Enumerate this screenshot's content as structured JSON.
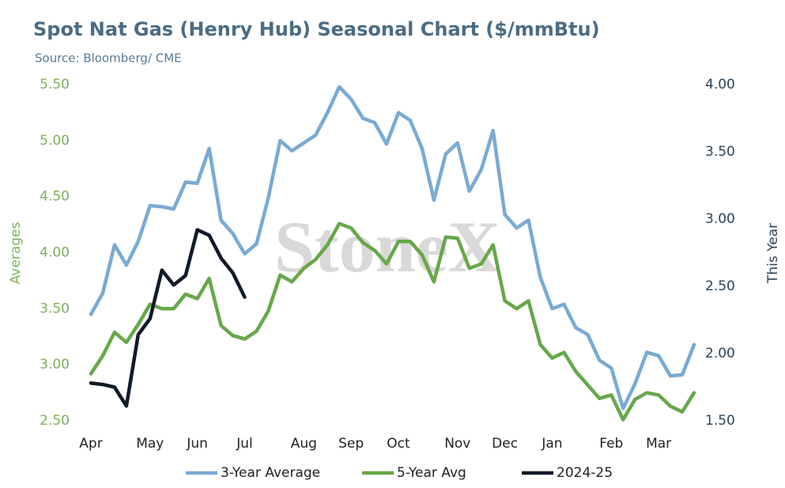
{
  "chart_data": {
    "type": "line",
    "title": "Spot Nat Gas (Henry Hub) Seasonal Chart ($/mmBtu)",
    "subtitle": "Source: Bloomberg/ CME",
    "watermark": "StoneX",
    "ylabel": "Averages",
    "y2label": "This Year",
    "categories": [
      "Apr",
      null,
      null,
      null,
      null,
      "May",
      null,
      null,
      null,
      "Jun",
      null,
      null,
      null,
      "Jul",
      null,
      null,
      null,
      null,
      "Aug",
      null,
      null,
      null,
      "Sep",
      null,
      null,
      null,
      "Oct",
      null,
      null,
      null,
      null,
      "Nov",
      null,
      null,
      null,
      "Dec",
      null,
      null,
      null,
      "Jan",
      null,
      null,
      null,
      null,
      "Feb",
      null,
      null,
      null,
      "Mar",
      null,
      null,
      null
    ],
    "ylim": [
      2.5,
      5.5
    ],
    "yticks": [
      {
        "value": 2.5,
        "label": "2.50"
      },
      {
        "value": 3,
        "label": "3.00"
      },
      {
        "value": 3.5,
        "label": "3.50"
      },
      {
        "value": 4,
        "label": "4.00"
      },
      {
        "value": 4.5,
        "label": "4.50"
      },
      {
        "value": 5,
        "label": "5.00"
      },
      {
        "value": 5.5,
        "label": "5.50"
      }
    ],
    "y2lim": [
      1.5,
      4
    ],
    "y2ticks": [
      {
        "value": 1.5,
        "label": "1.50"
      },
      {
        "value": 2,
        "label": "2.00"
      },
      {
        "value": 2.5,
        "label": "2.50"
      },
      {
        "value": 3,
        "label": "3.00"
      },
      {
        "value": 3.5,
        "label": "3.50"
      },
      {
        "value": 4,
        "label": "4.00"
      }
    ],
    "legend": "bottom",
    "series": [
      {
        "name": "3-Year Average",
        "color": "#7aaad3",
        "values": [
          3.45,
          3.64,
          4.07,
          3.89,
          4.1,
          4.42,
          4.41,
          4.39,
          4.63,
          4.62,
          4.93,
          4.29,
          4.17,
          3.99,
          4.08,
          4.49,
          5.0,
          4.91,
          4.98,
          5.05,
          5.25,
          5.48,
          5.37,
          5.2,
          5.16,
          4.97,
          5.25,
          5.18,
          4.93,
          4.47,
          4.88,
          4.98,
          4.55,
          4.74,
          5.09,
          4.34,
          4.22,
          4.29,
          3.78,
          3.5,
          3.54,
          3.33,
          3.27,
          3.04,
          2.97,
          2.61,
          2.83,
          3.11,
          3.08,
          2.9,
          2.91,
          3.18
        ]
      },
      {
        "name": "5-Year Avg",
        "color": "#67a84a",
        "values": [
          2.92,
          3.08,
          3.29,
          3.2,
          3.36,
          3.54,
          3.5,
          3.5,
          3.63,
          3.59,
          3.77,
          3.35,
          3.26,
          3.23,
          3.3,
          3.48,
          3.8,
          3.74,
          3.86,
          3.94,
          4.07,
          4.26,
          4.22,
          4.09,
          4.02,
          3.9,
          4.1,
          4.1,
          3.98,
          3.74,
          4.14,
          4.13,
          3.86,
          3.9,
          4.07,
          3.57,
          3.5,
          3.57,
          3.18,
          3.06,
          3.11,
          2.94,
          2.82,
          2.7,
          2.73,
          2.51,
          2.69,
          2.75,
          2.73,
          2.63,
          2.58,
          2.75
        ]
      },
      {
        "name": "2024-25",
        "color": "#111a29",
        "axis": "y2",
        "values": [
          1.78,
          1.77,
          1.75,
          1.61,
          2.14,
          2.26,
          2.62,
          2.51,
          2.58,
          2.92,
          2.88,
          2.71,
          2.6,
          2.42,
          null,
          null,
          null,
          null,
          null,
          null,
          null,
          null,
          null,
          null,
          null,
          null,
          null,
          null,
          null,
          null,
          null,
          null,
          null,
          null,
          null,
          null,
          null,
          null,
          null,
          null,
          null,
          null,
          null,
          null,
          null,
          null,
          null,
          null,
          null,
          null,
          null,
          null
        ]
      }
    ]
  }
}
